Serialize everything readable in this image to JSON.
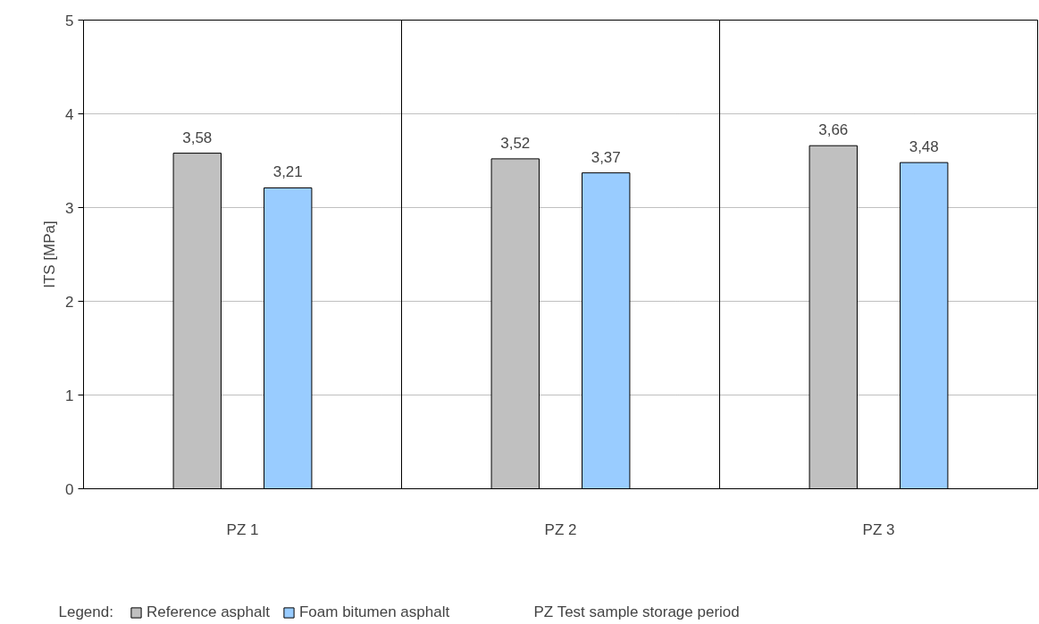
{
  "chart_data": {
    "type": "bar",
    "ylabel": "ITS [MPa]",
    "categories": [
      "PZ 1",
      "PZ 2",
      "PZ 3"
    ],
    "series": [
      {
        "name": "Reference asphalt",
        "color": "#c0c0c0",
        "values": [
          3.58,
          3.52,
          3.66
        ],
        "value_labels": [
          "3,58",
          "3,52",
          "3,66"
        ]
      },
      {
        "name": "Foam bitumen asphalt",
        "color": "#99ccff",
        "values": [
          3.21,
          3.37,
          3.48
        ],
        "value_labels": [
          "3,21",
          "3,37",
          "3,48"
        ]
      }
    ],
    "ylim": [
      0,
      5
    ],
    "yticks": [
      0,
      1,
      2,
      3,
      4,
      5
    ],
    "grid": true,
    "legend": "bottom",
    "legend_title": "Legend:",
    "annotations": [
      "PZ   Test sample storage period"
    ]
  }
}
